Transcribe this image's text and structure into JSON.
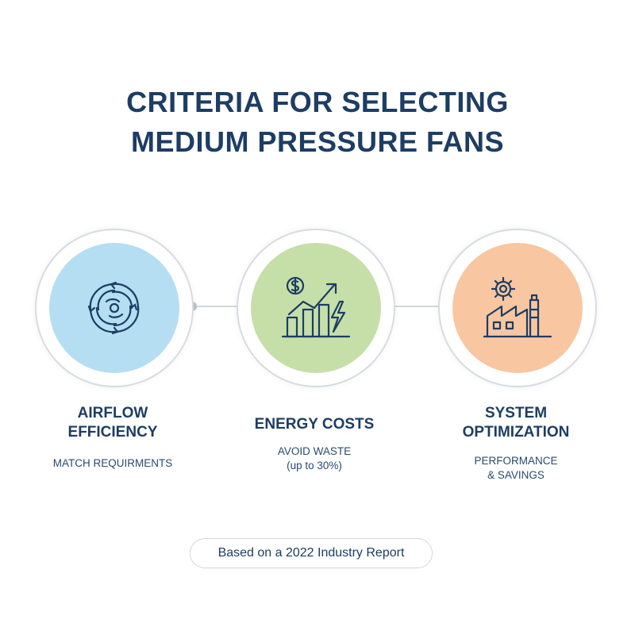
{
  "title": {
    "line1": "CRITERIA FOR SELECTING",
    "line2": "MEDIUM PRESSURE FANS"
  },
  "criteria": [
    {
      "label_line1": "AIRFLOW",
      "label_line2": "EFFICIENCY",
      "sub_line1": "MATCH REQUIRMENTS",
      "icon": "airflow-swirl-icon",
      "color": "#b5def2"
    },
    {
      "label_line1": "ENERGY COSTS",
      "sub_line1": "AVOID WASTE",
      "sub_line2": "(up to 30%)",
      "icon": "energy-cost-chart-icon",
      "color": "#c6dfa9"
    },
    {
      "label_line1": "SYSTEM",
      "label_line2": "OPTIMIZATION",
      "sub_line1": "PERFORMANCE",
      "sub_line2": "& SAVINGS",
      "icon": "factory-gear-icon",
      "color": "#f8c6a1"
    }
  ],
  "source_note": "Based on a 2022 Industry Report",
  "colors": {
    "text": "#1d3d63",
    "connector": "#d3d7dc"
  }
}
